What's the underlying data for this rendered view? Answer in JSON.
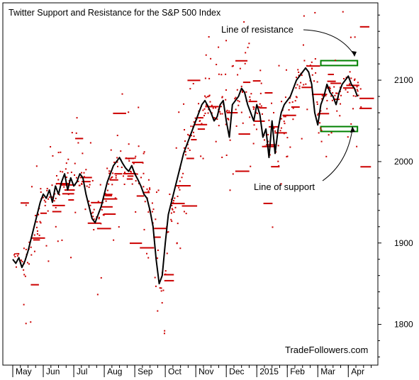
{
  "chart_data": {
    "type": "line",
    "title": "Twitter Support and Resistance for the S&P 500 Index",
    "watermark": "TradeFollowers.com",
    "x_tick_labels": [
      "May",
      "Jun",
      "Jul",
      "Aug",
      "Sep",
      "Oct",
      "Nov",
      "Dec",
      "2015",
      "Feb",
      "Mar",
      "Apr"
    ],
    "x_tick_months": [
      0,
      1,
      2,
      3,
      4,
      5,
      6,
      7,
      8,
      9,
      10,
      11
    ],
    "x_range_months": [
      0,
      11.9
    ],
    "y_tick_labels": [
      "1800",
      "1900",
      "2000",
      "2100"
    ],
    "y_ticks": [
      1800,
      1900,
      2000,
      2100
    ],
    "ylim": [
      1750,
      2195
    ],
    "series": [
      {
        "color": "#000000",
        "x_months": [
          0.0,
          0.1,
          0.2,
          0.3,
          0.4,
          0.5,
          0.6,
          0.7,
          0.8,
          0.9,
          1.0,
          1.1,
          1.2,
          1.3,
          1.4,
          1.5,
          1.6,
          1.7,
          1.8,
          1.9,
          2.0,
          2.1,
          2.2,
          2.3,
          2.4,
          2.5,
          2.6,
          2.7,
          2.8,
          2.9,
          3.0,
          3.1,
          3.2,
          3.3,
          3.4,
          3.5,
          3.6,
          3.7,
          3.8,
          3.9,
          4.0,
          4.1,
          4.2,
          4.3,
          4.4,
          4.5,
          4.6,
          4.7,
          4.8,
          4.9,
          5.0,
          5.1,
          5.2,
          5.3,
          5.4,
          5.5,
          5.6,
          5.7,
          5.8,
          5.9,
          6.0,
          6.1,
          6.2,
          6.3,
          6.4,
          6.5,
          6.6,
          6.7,
          6.8,
          6.9,
          7.0,
          7.1,
          7.2,
          7.3,
          7.4,
          7.5,
          7.6,
          7.7,
          7.8,
          7.9,
          8.0,
          8.1,
          8.2,
          8.3,
          8.4,
          8.5,
          8.6,
          8.7,
          8.8,
          8.9,
          9.0,
          9.1,
          9.2,
          9.3,
          9.4,
          9.5,
          9.6,
          9.7,
          9.8,
          9.9,
          10.0,
          10.1,
          10.2,
          10.3,
          10.4,
          10.5,
          10.6,
          10.7,
          10.8,
          10.9,
          11.0,
          11.1,
          11.2,
          11.3
        ],
        "values": [
          1880,
          1875,
          1882,
          1870,
          1878,
          1890,
          1905,
          1920,
          1935,
          1950,
          1960,
          1955,
          1965,
          1950,
          1970,
          1960,
          1975,
          1985,
          1965,
          1980,
          1970,
          1975,
          1985,
          1980,
          1960,
          1945,
          1930,
          1925,
          1935,
          1945,
          1960,
          1975,
          1985,
          1995,
          2000,
          2005,
          1998,
          1992,
          1988,
          1995,
          1985,
          1978,
          1970,
          1960,
          1955,
          1940,
          1920,
          1880,
          1850,
          1860,
          1900,
          1935,
          1950,
          1965,
          1980,
          1995,
          2010,
          2020,
          2030,
          2040,
          2050,
          2060,
          2070,
          2075,
          2068,
          2060,
          2050,
          2055,
          2070,
          2075,
          2050,
          2030,
          2070,
          2075,
          2080,
          2090,
          2085,
          2070,
          2060,
          2050,
          2070,
          2058,
          2030,
          2040,
          2005,
          2050,
          2010,
          2040,
          2060,
          2070,
          2075,
          2080,
          2090,
          2100,
          2105,
          2110,
          2115,
          2110,
          2095,
          2060,
          2045,
          2070,
          2080,
          2095,
          2085,
          2080,
          2070,
          2085,
          2095,
          2100,
          2105,
          2095,
          2090,
          2080
        ]
      }
    ],
    "resistance_zone": {
      "from": 2118,
      "to": 2124,
      "color": "#008000"
    },
    "support_zone": {
      "from": 2037,
      "to": 2043,
      "color": "#008000"
    },
    "annotations": [
      {
        "text": "Line of resistance",
        "points_to": "resistance_zone"
      },
      {
        "text": "Line of support",
        "points_to": "support_zone"
      }
    ],
    "grid": false,
    "tweet_marks_color": "#cc0000"
  }
}
